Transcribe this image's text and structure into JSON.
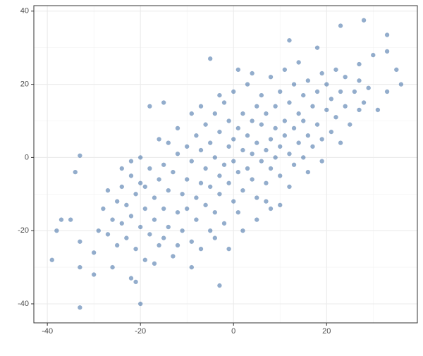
{
  "chart_data": {
    "type": "scatter",
    "x": [
      -39,
      -33,
      -34,
      -33,
      -20,
      -3,
      -5,
      28,
      23,
      33,
      33,
      35,
      36,
      30,
      -37,
      -38,
      -35,
      -33,
      -30,
      -33,
      -22,
      -21,
      -18,
      -15,
      12,
      27,
      31,
      33,
      18,
      -24,
      -22,
      -28,
      -27,
      -27,
      -26,
      -25,
      -25,
      -24,
      -24,
      -23,
      -23,
      -22,
      -22,
      -21,
      -21,
      -20,
      -20,
      -19,
      -19,
      -18,
      -18,
      -17,
      -17,
      -16,
      -16,
      -15,
      -15,
      -14,
      -14,
      -13,
      -13,
      -12,
      -12,
      -11,
      -11,
      -10,
      -10,
      -10,
      -9,
      -9,
      -8,
      -8,
      -8,
      -7,
      -7,
      -6,
      -6,
      -6,
      -5,
      -5,
      -5,
      -4,
      -4,
      -4,
      -3,
      -3,
      -3,
      -2,
      -2,
      -2,
      -1,
      -1,
      -1,
      0,
      0,
      0,
      0,
      1,
      1,
      1,
      2,
      2,
      2,
      3,
      3,
      3,
      4,
      4,
      4,
      5,
      5,
      5,
      6,
      6,
      6,
      7,
      7,
      7,
      8,
      8,
      8,
      9,
      9,
      9,
      10,
      10,
      10,
      11,
      11,
      11,
      12,
      12,
      12,
      13,
      13,
      14,
      14,
      14,
      15,
      15,
      15,
      16,
      16,
      17,
      17,
      18,
      18,
      19,
      19,
      20,
      20,
      21,
      21,
      22,
      22,
      23,
      24,
      24,
      25,
      26,
      27,
      28,
      29,
      -30,
      -29,
      -26,
      -19,
      -17,
      -15,
      -12,
      -9,
      -7,
      -4,
      -1,
      2,
      5,
      8,
      10,
      -12,
      -9,
      -7,
      -3,
      1,
      4,
      7,
      13,
      16,
      19,
      -14,
      -20,
      -16,
      23,
      27
    ],
    "y": [
      -28,
      0.5,
      -4,
      -41,
      -40,
      -35,
      27,
      37.5,
      36,
      33.5,
      29,
      24,
      20,
      28,
      -17,
      -20,
      -17,
      -30,
      -32,
      -23,
      -33,
      -34,
      14,
      15,
      32,
      25.5,
      13,
      18,
      30,
      -3,
      -1,
      -14,
      -9,
      -21,
      -17,
      -24,
      -12,
      -18,
      -8,
      -22,
      -13,
      -5,
      -16,
      -25,
      -10,
      -19,
      -7,
      -14,
      -28,
      -3,
      -21,
      -11,
      -17,
      -6,
      -24,
      -14,
      -2,
      -19,
      -9,
      -27,
      -4,
      -15,
      1,
      -10,
      -20,
      -6,
      3,
      -14,
      -23,
      -1,
      -11,
      6,
      -17,
      -7,
      2,
      -13,
      9,
      -3,
      -20,
      -8,
      4,
      -15,
      0,
      12,
      -5,
      -10,
      7,
      -2,
      -18,
      15,
      -7,
      3,
      10,
      -12,
      -1,
      5,
      18,
      -4,
      8,
      -15,
      2,
      12,
      -9,
      -3,
      6,
      20,
      -6,
      10,
      1,
      -11,
      14,
      4,
      -1,
      9,
      17,
      2,
      -7,
      12,
      5,
      22,
      -3,
      8,
      14,
      0,
      3,
      18,
      -5,
      10,
      24,
      6,
      1,
      15,
      -8,
      8,
      20,
      4,
      12,
      26,
      10,
      0,
      17,
      6,
      21,
      14,
      3,
      18,
      9,
      23,
      5,
      13,
      20,
      7,
      16,
      24,
      11,
      18,
      14,
      22,
      9,
      18,
      21,
      15,
      19,
      -26,
      -20,
      -30,
      -8,
      -29,
      -22,
      -24,
      -30,
      -25,
      -22,
      -25,
      -20,
      -17,
      -14,
      -13,
      8,
      12,
      14,
      17,
      24,
      23,
      -12,
      -2,
      -4,
      -1,
      4,
      0,
      5,
      4,
      13
    ],
    "color": "#3a6aa3",
    "xlim": [
      -42.9,
      39.5
    ],
    "ylim": [
      -45.2,
      41.5
    ],
    "xticks": [
      -40,
      -20,
      0,
      20
    ],
    "yticks": [
      -40,
      -20,
      0,
      20,
      40
    ],
    "minor_xticks": [
      -30,
      -10,
      10,
      30
    ],
    "minor_yticks": [
      -30,
      -10,
      10,
      30
    ],
    "grid": true
  }
}
